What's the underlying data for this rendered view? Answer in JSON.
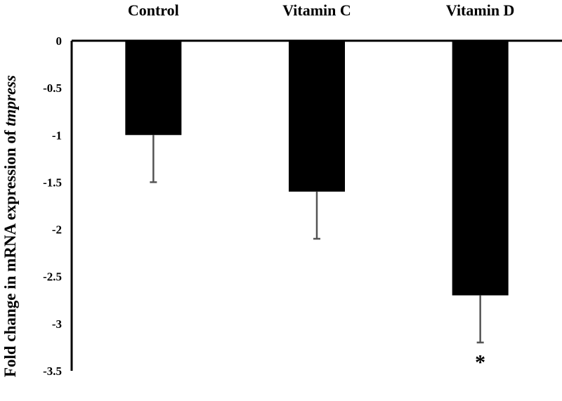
{
  "chart_data": {
    "type": "bar",
    "categories": [
      "Control",
      "Vitamin C",
      "Vitamin D"
    ],
    "values": [
      -1,
      -1.6,
      -2.7
    ],
    "error_bars": [
      0.5,
      0.5,
      0.5
    ],
    "ylabel": "Fold change in mRNA expression of ",
    "ylabel_italic": "tmpress",
    "ylim": [
      -3.5,
      0
    ],
    "yticks": [
      0,
      -0.5,
      -1,
      -1.5,
      -2,
      -2.5,
      -3,
      -3.5
    ],
    "ytick_labels": [
      "0",
      "-0.5",
      "-1",
      "-1.5",
      "-2",
      "-2.5",
      "-3",
      "-3.5"
    ],
    "annotations": [
      {
        "category": "Vitamin D",
        "text": "*"
      }
    ],
    "bar_color": "#000000",
    "error_color": "#555555",
    "grid": false,
    "legend": "none"
  }
}
